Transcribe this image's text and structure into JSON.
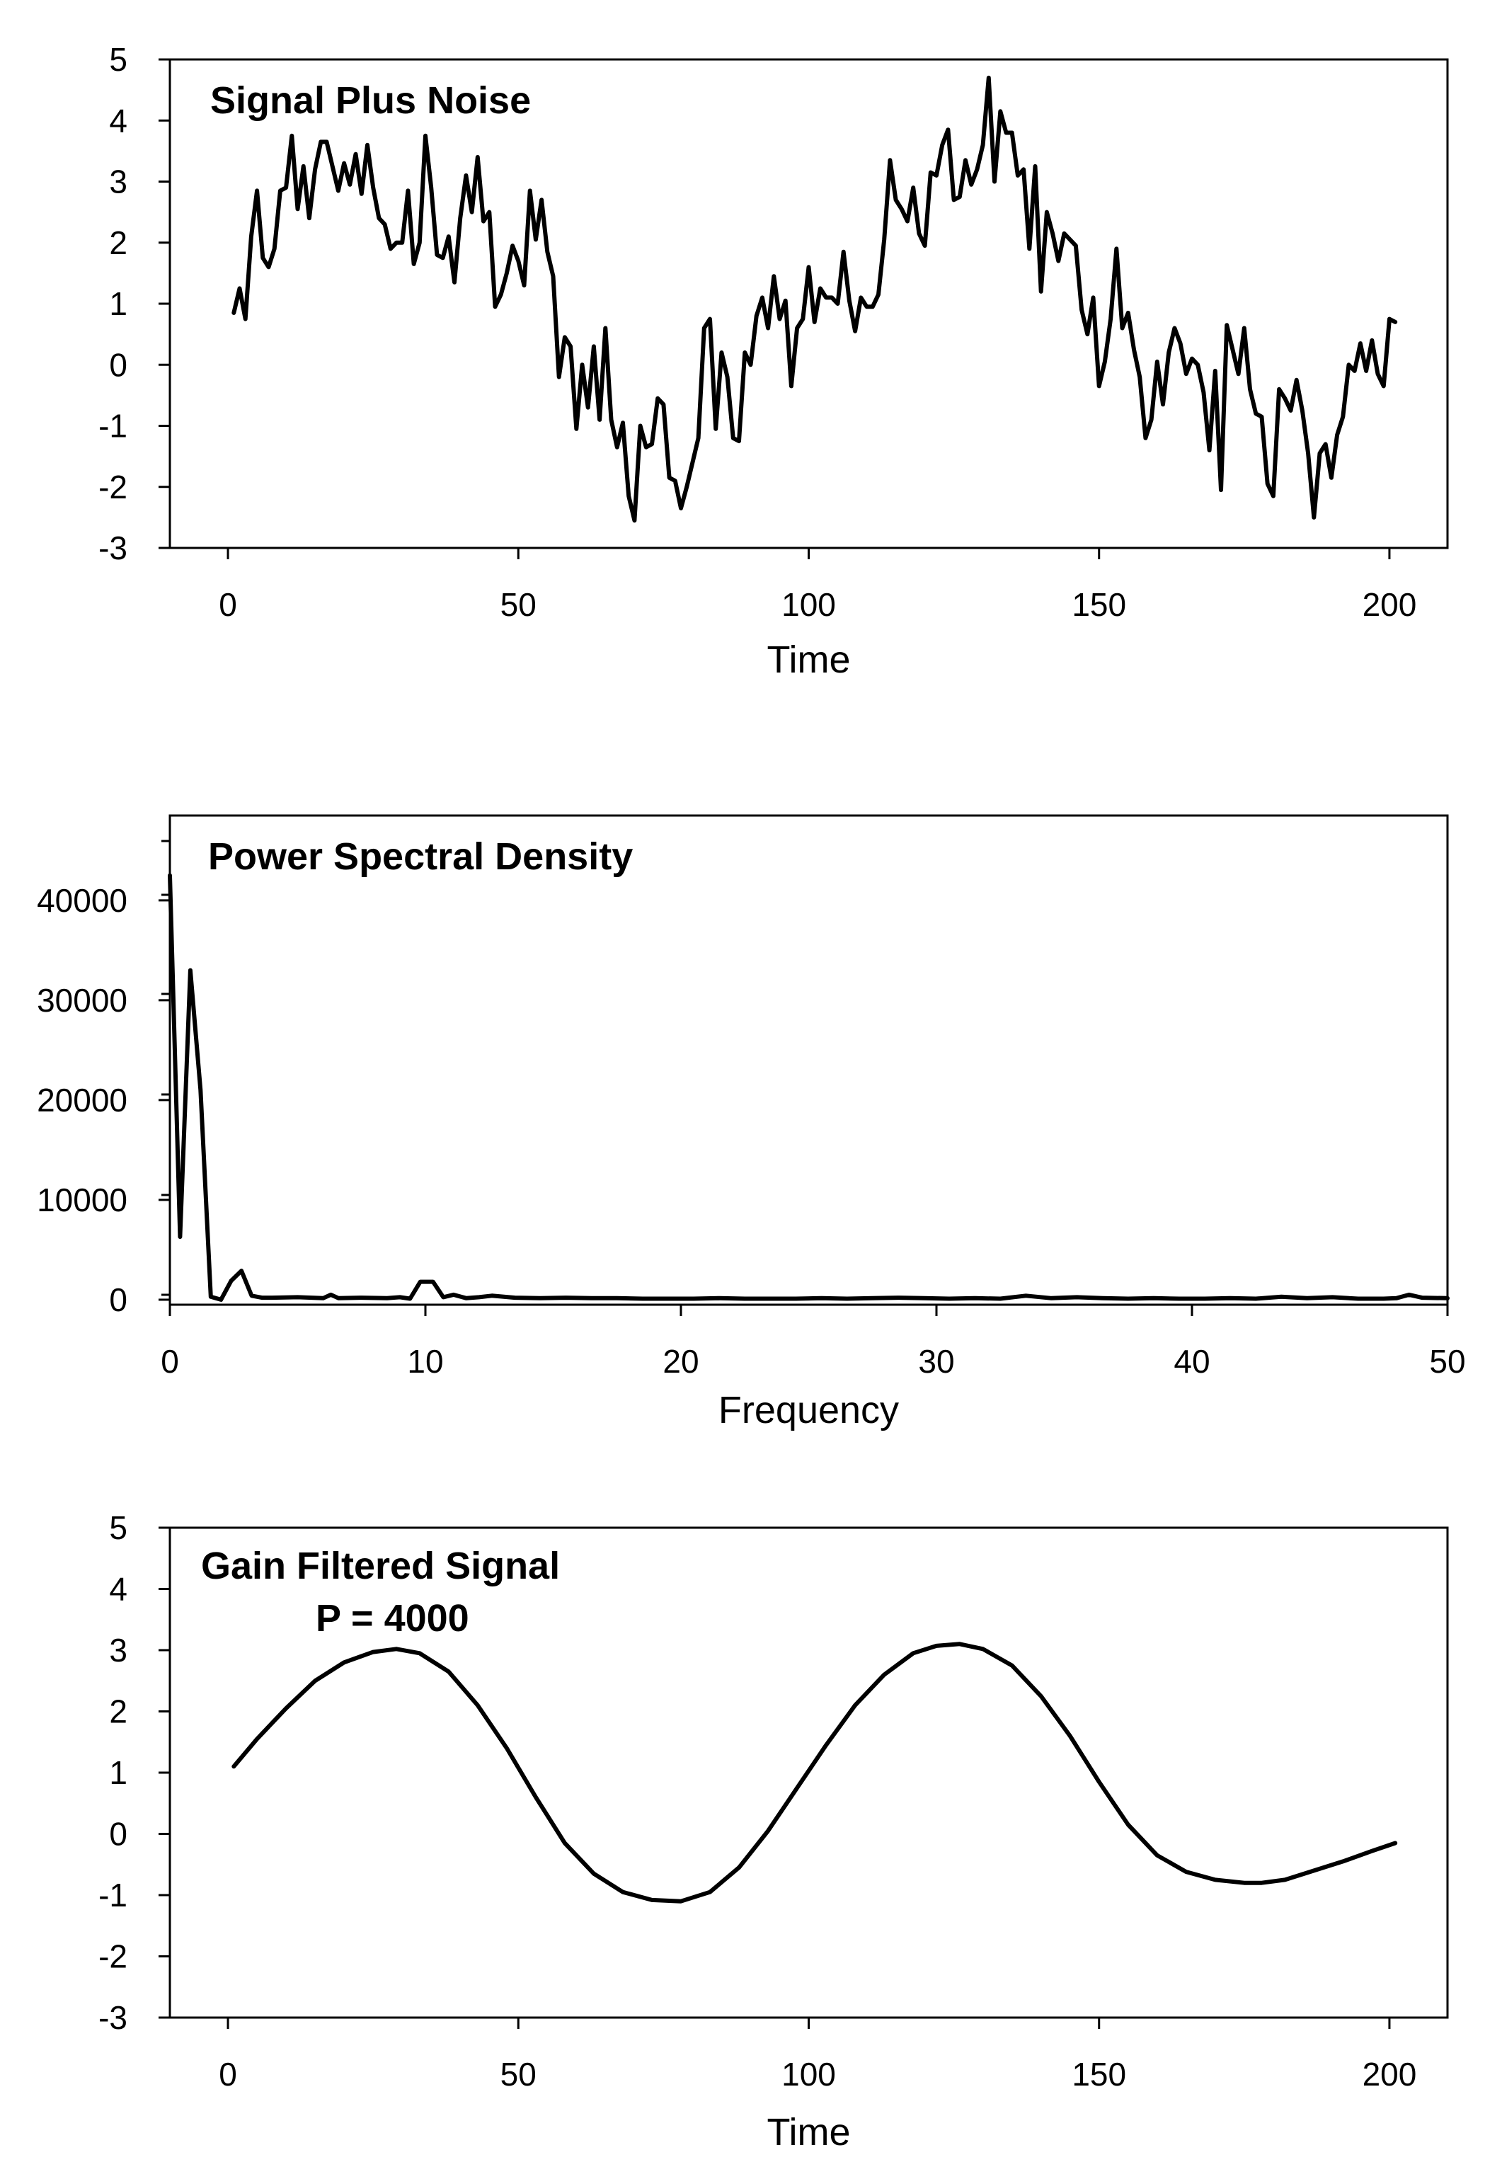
{
  "chart_data": [
    {
      "type": "line",
      "title": "Signal Plus Noise",
      "subtitle": "",
      "xlabel": "Time",
      "ylabel": "",
      "xlim": [
        -10,
        210
      ],
      "ylim": [
        -3,
        5
      ],
      "xticks": [
        0,
        50,
        100,
        150,
        200
      ],
      "yticks": [
        5,
        4,
        3,
        2,
        1,
        0,
        -1,
        -2,
        -3
      ],
      "xtick_labels": [
        "0",
        "50",
        "100",
        "150",
        "200"
      ],
      "ytick_labels": [
        "5",
        "4",
        "3",
        "2",
        "1",
        "0",
        "-1",
        "-2",
        "-3"
      ],
      "grid": false,
      "legend": "none",
      "line_color": "#000000",
      "series": [
        {
          "x": [
            1,
            2,
            3,
            4,
            5,
            6,
            7,
            8,
            9,
            10,
            11,
            12,
            13,
            14,
            15,
            16,
            17,
            18,
            19,
            20,
            21,
            22,
            23,
            24,
            25,
            26,
            27,
            28,
            29,
            30,
            31,
            32,
            33,
            34,
            35,
            36,
            37,
            38,
            39,
            40,
            41,
            42,
            43,
            44,
            45,
            46,
            47,
            48,
            49,
            50,
            51,
            52,
            53,
            54,
            55,
            56,
            57,
            58,
            59,
            60,
            61,
            62,
            63,
            64,
            65,
            66,
            67,
            68,
            69,
            70,
            71,
            72,
            73,
            74,
            75,
            76,
            77,
            78,
            79,
            80,
            81,
            82,
            83,
            84,
            85,
            86,
            87,
            88,
            89,
            90,
            91,
            92,
            93,
            94,
            95,
            96,
            97,
            98,
            99,
            100,
            101,
            102,
            103,
            104,
            105,
            106,
            107,
            108,
            109,
            110,
            111,
            112,
            113,
            114,
            115,
            116,
            117,
            118,
            119,
            120,
            121,
            122,
            123,
            124,
            125,
            126,
            127,
            128,
            129,
            130,
            131,
            132,
            133,
            134,
            135,
            136,
            137,
            138,
            139,
            140,
            141,
            142,
            143,
            144,
            145,
            146,
            147,
            148,
            149,
            150,
            151,
            152,
            153,
            154,
            155,
            156,
            157,
            158,
            159,
            160,
            161,
            162,
            163,
            164,
            165,
            166,
            167,
            168,
            169,
            170,
            171,
            172,
            173,
            174,
            175,
            176,
            177,
            178,
            179,
            180,
            181,
            182,
            183,
            184,
            185,
            186,
            187,
            188,
            189,
            190,
            191,
            192,
            193,
            194,
            195,
            196,
            197,
            198,
            199,
            200,
            201
          ],
          "values": [
            0.85,
            1.25,
            0.75,
            2.1,
            2.85,
            1.75,
            1.6,
            1.9,
            2.85,
            2.9,
            3.75,
            2.55,
            3.25,
            2.4,
            3.2,
            3.65,
            3.65,
            3.25,
            2.85,
            3.3,
            2.95,
            3.45,
            2.8,
            3.6,
            2.9,
            2.4,
            2.3,
            1.9,
            2.0,
            2.0,
            2.85,
            1.65,
            2.0,
            3.75,
            2.9,
            1.8,
            1.75,
            2.1,
            1.35,
            2.4,
            3.1,
            2.5,
            3.4,
            2.35,
            2.5,
            0.95,
            1.15,
            1.5,
            1.95,
            1.7,
            1.3,
            2.85,
            2.05,
            2.7,
            1.85,
            1.45,
            -0.2,
            0.45,
            0.3,
            -1.05,
            0.0,
            -0.7,
            0.3,
            -0.9,
            0.6,
            -0.9,
            -1.35,
            -0.95,
            -2.15,
            -2.55,
            -1.0,
            -1.35,
            -1.3,
            -0.55,
            -0.65,
            -1.85,
            -1.9,
            -2.35,
            -2.0,
            -1.6,
            -1.2,
            0.6,
            0.75,
            -1.05,
            0.2,
            -0.2,
            -1.2,
            -1.25,
            0.2,
            0.0,
            0.8,
            1.1,
            0.6,
            1.45,
            0.75,
            1.05,
            -0.35,
            0.6,
            0.75,
            1.6,
            0.7,
            1.25,
            1.1,
            1.1,
            1.0,
            1.85,
            1.05,
            0.55,
            1.1,
            0.95,
            0.95,
            1.15,
            2.05,
            3.35,
            2.7,
            2.55,
            2.35,
            2.9,
            2.15,
            1.95,
            3.15,
            3.1,
            3.6,
            3.85,
            2.7,
            2.75,
            3.35,
            2.95,
            3.2,
            3.6,
            4.7,
            3.0,
            4.15,
            3.8,
            3.8,
            3.1,
            3.2,
            1.9,
            3.25,
            1.2,
            2.5,
            2.15,
            1.7,
            2.15,
            2.05,
            1.95,
            0.9,
            0.5,
            1.1,
            -0.35,
            0.05,
            0.75,
            1.9,
            0.6,
            0.85,
            0.25,
            -0.2,
            -1.2,
            -0.9,
            0.05,
            -0.65,
            0.2,
            0.6,
            0.35,
            -0.15,
            0.1,
            0.0,
            -0.45,
            -1.4,
            -0.1,
            -2.05,
            0.65,
            0.25,
            -0.15,
            0.6,
            -0.4,
            -0.8,
            -0.85,
            -1.95,
            -2.15,
            -0.4,
            -0.55,
            -0.75,
            -0.25,
            -0.75,
            -1.45,
            -2.5,
            -1.45,
            -1.3,
            -1.85,
            -1.15,
            -0.85,
            0.0,
            -0.1,
            0.35,
            -0.1,
            0.4,
            -0.15,
            -0.35,
            0.75,
            0.7
          ]
        }
      ]
    },
    {
      "type": "line",
      "title": "Power Spectral Density",
      "subtitle": "",
      "xlabel": "Frequency",
      "ylabel": "",
      "xlim": [
        0,
        50
      ],
      "ylim": [
        -500,
        48500
      ],
      "xticks": [
        0,
        10,
        20,
        30,
        40,
        50
      ],
      "yticks": [
        40000,
        30000,
        20000,
        10000,
        0
      ],
      "xtick_labels": [
        "0",
        "10",
        "20",
        "30",
        "40",
        "50"
      ],
      "ytick_labels": [
        "40000",
        "30000",
        "20000",
        "10000",
        "0"
      ],
      "grid": false,
      "legend": "none",
      "line_color": "#000000",
      "series": [
        {
          "x": [
            0.0,
            0.4,
            0.8,
            1.2,
            1.6,
            2.0,
            2.4,
            2.8,
            3.2,
            3.6,
            4.0,
            5.0,
            6.0,
            6.3,
            6.6,
            7.5,
            8.5,
            9.0,
            9.4,
            9.8,
            10.3,
            10.7,
            11.1,
            11.6,
            12.1,
            12.6,
            13.5,
            14.5,
            15.5,
            16.5,
            17.5,
            18.5,
            19.5,
            20.5,
            21.5,
            22.5,
            23.5,
            24.5,
            25.5,
            26.5,
            27.5,
            28.5,
            29.5,
            30.5,
            31.5,
            32.5,
            33.5,
            34.5,
            35.5,
            36.5,
            37.5,
            38.5,
            39.5,
            40.5,
            41.5,
            42.5,
            43.5,
            44.5,
            45.5,
            46.5,
            47.5,
            48.0,
            48.5,
            49.0,
            50.0
          ],
          "values": [
            42500,
            6300,
            33000,
            21000,
            300,
            0,
            1900,
            2900,
            400,
            200,
            200,
            250,
            150,
            500,
            150,
            200,
            150,
            250,
            100,
            1800,
            1800,
            250,
            500,
            150,
            250,
            400,
            200,
            150,
            200,
            150,
            150,
            100,
            100,
            100,
            150,
            100,
            100,
            100,
            150,
            100,
            150,
            200,
            150,
            100,
            150,
            100,
            400,
            150,
            250,
            150,
            100,
            150,
            100,
            100,
            150,
            100,
            300,
            150,
            250,
            100,
            100,
            150,
            500,
            200,
            150
          ]
        }
      ]
    },
    {
      "type": "line",
      "title": "Gain Filtered Signal",
      "subtitle": "P = 4000",
      "xlabel": "Time",
      "ylabel": "",
      "xlim": [
        -10,
        210
      ],
      "ylim": [
        -3,
        5
      ],
      "xticks": [
        0,
        50,
        100,
        150,
        200
      ],
      "yticks": [
        5,
        4,
        3,
        2,
        1,
        0,
        -1,
        -2,
        -3
      ],
      "xtick_labels": [
        "0",
        "50",
        "100",
        "150",
        "200"
      ],
      "ytick_labels": [
        "5",
        "4",
        "3",
        "2",
        "1",
        "0",
        "-1",
        "-2",
        "-3"
      ],
      "grid": false,
      "legend": "none",
      "line_color": "#000000",
      "series": [
        {
          "x": [
            1,
            5,
            10,
            15,
            20,
            25,
            29,
            33,
            38,
            43,
            48,
            53,
            58,
            63,
            68,
            73,
            78,
            83,
            88,
            93,
            98,
            103,
            108,
            113,
            118,
            122,
            126,
            130,
            135,
            140,
            145,
            150,
            155,
            160,
            165,
            170,
            175,
            178,
            182,
            187,
            192,
            197,
            201
          ],
          "values": [
            1.1,
            1.55,
            2.05,
            2.5,
            2.8,
            2.97,
            3.02,
            2.95,
            2.65,
            2.1,
            1.4,
            0.6,
            -0.15,
            -0.65,
            -0.95,
            -1.08,
            -1.1,
            -0.95,
            -0.55,
            0.05,
            0.75,
            1.45,
            2.1,
            2.6,
            2.95,
            3.07,
            3.1,
            3.02,
            2.75,
            2.25,
            1.6,
            0.85,
            0.15,
            -0.35,
            -0.62,
            -0.75,
            -0.8,
            -0.8,
            -0.75,
            -0.6,
            -0.45,
            -0.28,
            -0.15
          ]
        }
      ]
    }
  ]
}
